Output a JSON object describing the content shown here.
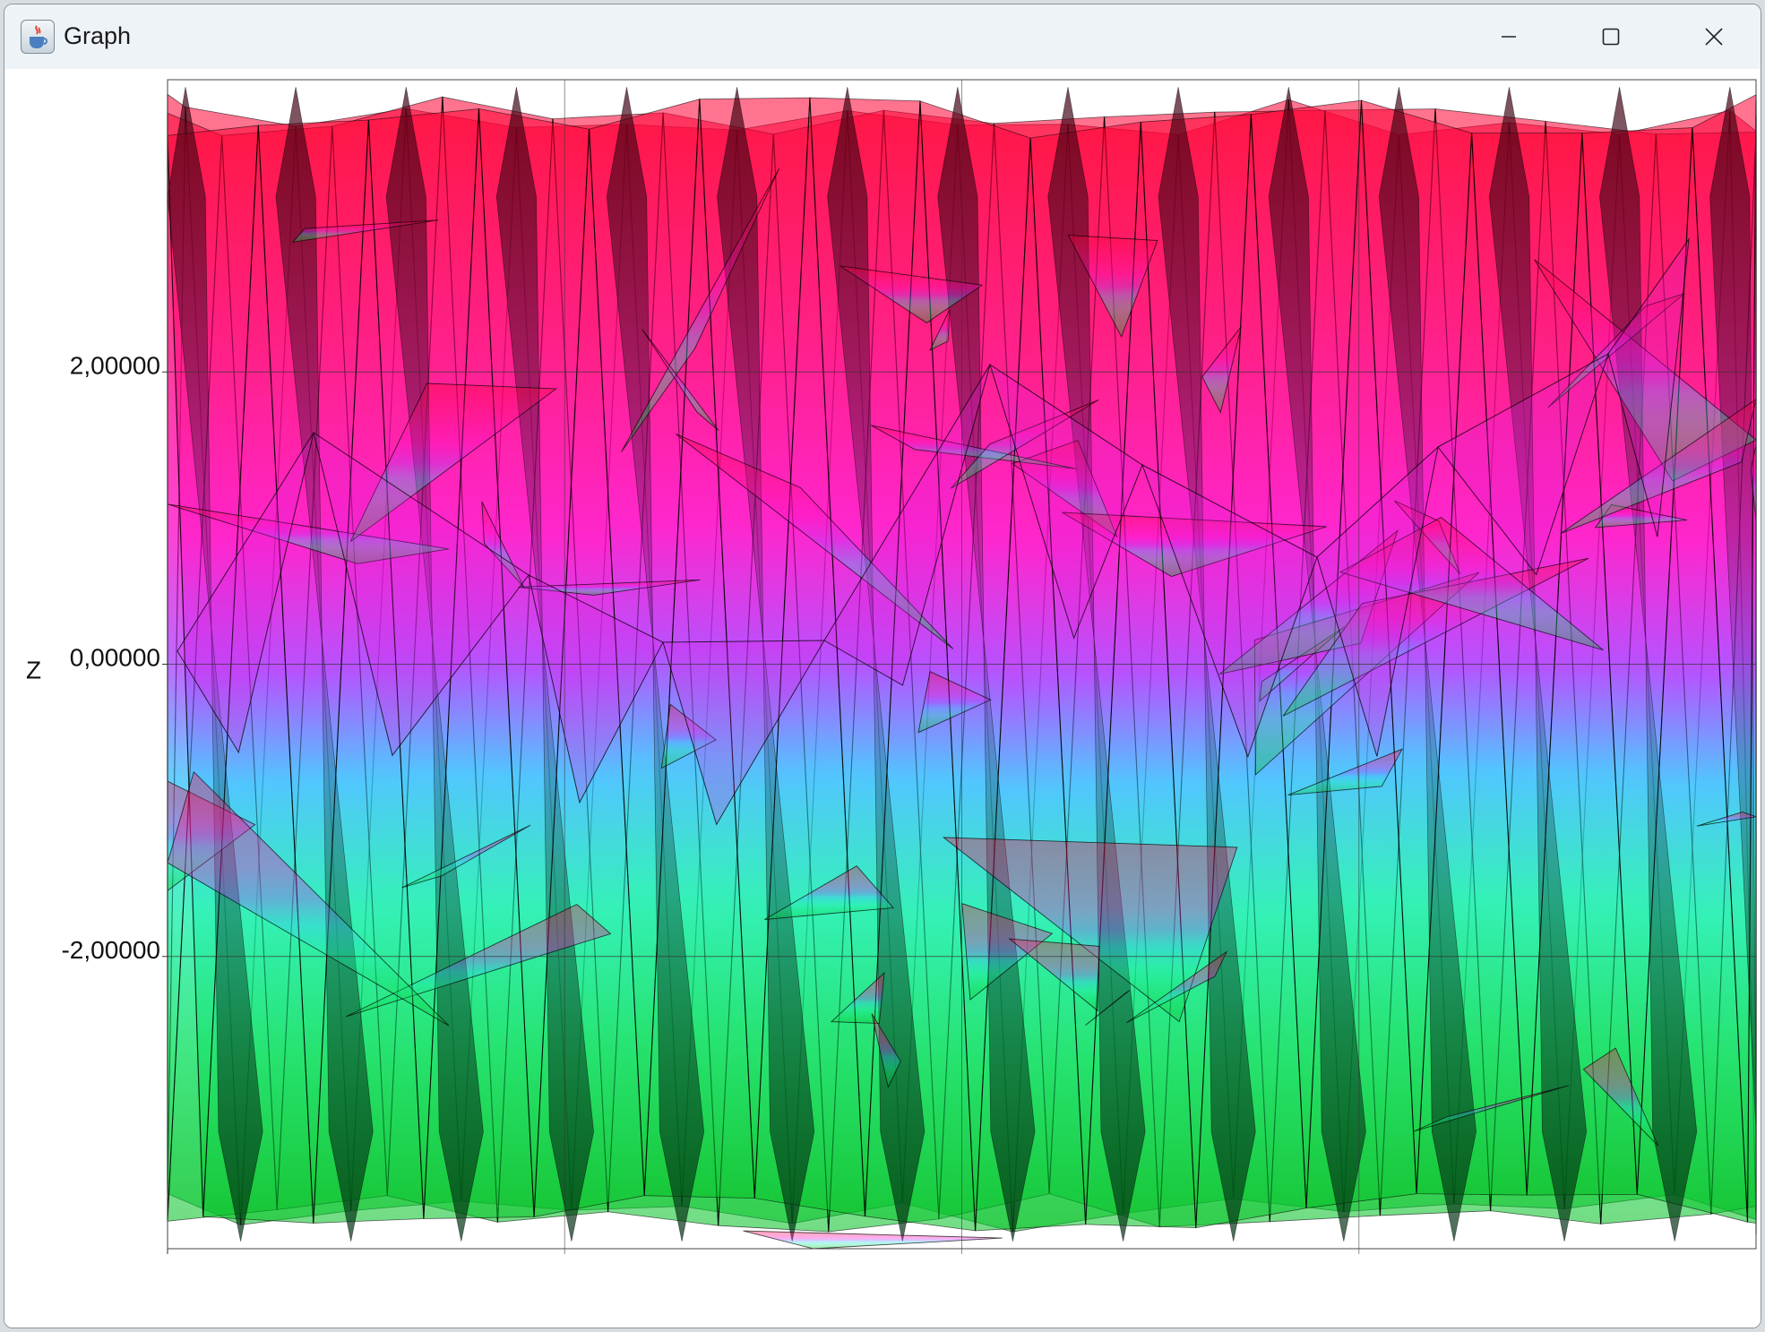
{
  "window": {
    "title": "Graph",
    "buttons": {
      "minimize": "minimize-icon",
      "maximize": "maximize-icon",
      "close": "close-icon"
    }
  },
  "colors": {
    "top": "#ff0040",
    "upper": "#ff10c0",
    "middle": "#a040ff",
    "lower_mid": "#30d0ff",
    "lower": "#20f0a0",
    "bottom": "#00e040",
    "edge": "#000000"
  },
  "chart_data": {
    "type": "area",
    "title": "",
    "xlabel": "",
    "ylabel": "Z",
    "y_ticks": [
      {
        "value": 2,
        "label": "2,00000"
      },
      {
        "value": 0,
        "label": "0,00000"
      },
      {
        "value": -2,
        "label": "-2,00000"
      }
    ],
    "ylim": [
      -4,
      4
    ],
    "x_gridlines": 3,
    "grid": true,
    "peak_count": 15,
    "trough_count": 15,
    "description_of_surface": "3D surface projection viewed edge-on, spiky triangulated mesh oscillating between about -4 and 4 with red top, magenta/violet middle, cyan and green bottom"
  }
}
